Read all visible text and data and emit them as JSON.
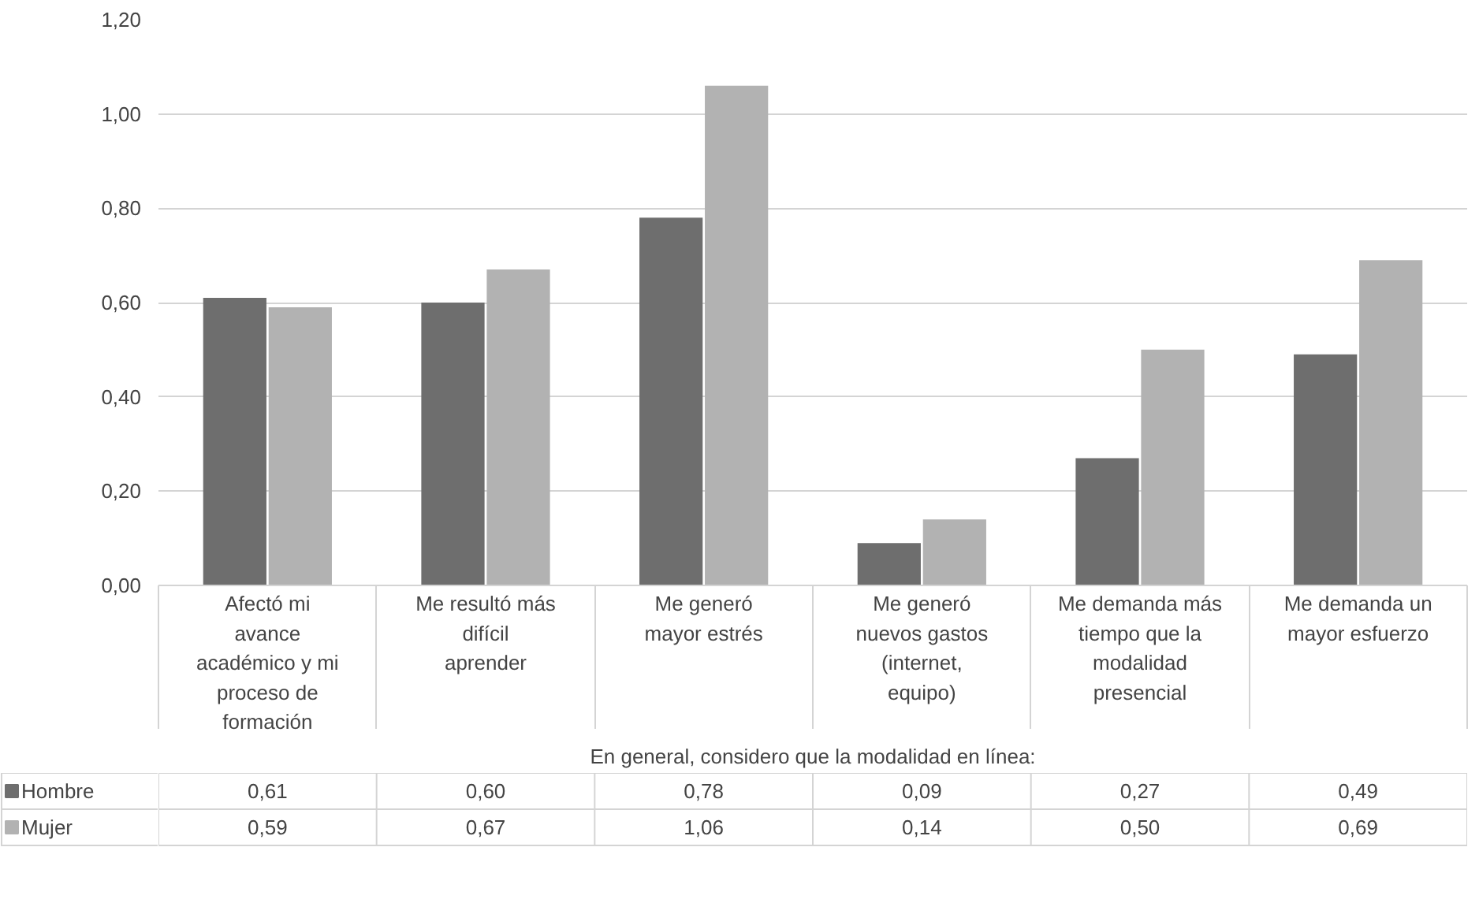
{
  "chart_data": {
    "type": "bar",
    "categories": [
      "Afectó mi avance académico y mi proceso de formación",
      "Me resultó más difícil aprender",
      "Me generó mayor estrés",
      "Me generó nuevos gastos (internet, equipo)",
      "Me demanda más tiempo que la modalidad presencial",
      "Me demanda un mayor esfuerzo"
    ],
    "xlabel": "En general, considero que la modalidad en línea:",
    "series": [
      {
        "name": "Hombre",
        "color": "#6e6e6e",
        "values": [
          0.61,
          0.6,
          0.78,
          0.09,
          0.27,
          0.49
        ],
        "value_labels": [
          "0,61",
          "0,60",
          "0,78",
          "0,09",
          "0,27",
          "0,49"
        ]
      },
      {
        "name": "Mujer",
        "color": "#b2b2b2",
        "values": [
          0.59,
          0.67,
          1.06,
          0.14,
          0.5,
          0.69
        ],
        "value_labels": [
          "0,59",
          "0,67",
          "1,06",
          "0,14",
          "0,50",
          "0,69"
        ]
      }
    ],
    "ylim": [
      0,
      1.2
    ],
    "yticks": [
      {
        "value": 0,
        "label": "0,00"
      },
      {
        "value": 0.2,
        "label": "0,20"
      },
      {
        "value": 0.4,
        "label": "0,40"
      },
      {
        "value": 0.6,
        "label": "0,60"
      },
      {
        "value": 0.8,
        "label": "0,80"
      },
      {
        "value": 1.0,
        "label": "1,00"
      },
      {
        "value": 1.2,
        "label": "1,20"
      }
    ],
    "grid": "y",
    "legend": "bottom left"
  }
}
